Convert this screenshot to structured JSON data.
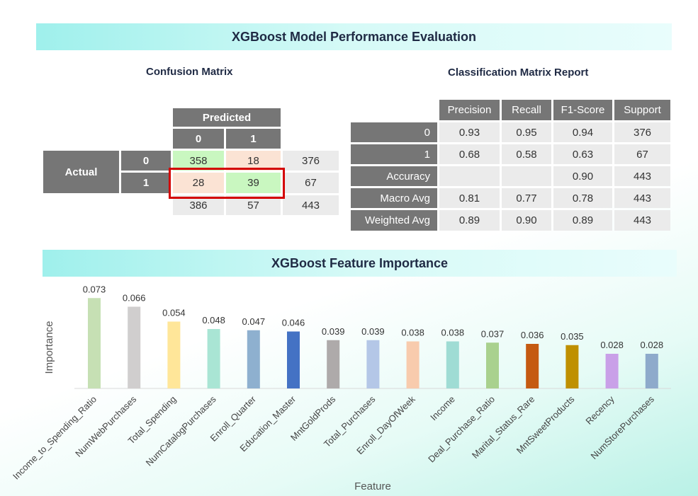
{
  "header": {
    "title": "XGBoost Model Performance Evaluation"
  },
  "confusion_matrix": {
    "title": "Confusion Matrix",
    "predicted_label": "Predicted",
    "actual_label": "Actual",
    "class_labels": [
      "0",
      "1"
    ],
    "rows": [
      {
        "actual": "0",
        "values": [
          "358",
          "18"
        ],
        "total": "376"
      },
      {
        "actual": "1",
        "values": [
          "28",
          "39"
        ],
        "total": "67"
      }
    ],
    "column_totals": [
      "386",
      "57",
      "443"
    ]
  },
  "classification_report": {
    "title": "Classification Matrix Report",
    "columns": [
      "Precision",
      "Recall",
      "F1-Score",
      "Support"
    ],
    "rows": [
      {
        "label": "0",
        "values": [
          "0.93",
          "0.95",
          "0.94",
          "376"
        ]
      },
      {
        "label": "1",
        "values": [
          "0.68",
          "0.58",
          "0.63",
          "67"
        ]
      },
      {
        "label": "Accuracy",
        "values": [
          "",
          "",
          "0.90",
          "443"
        ]
      },
      {
        "label": "Macro Avg",
        "values": [
          "0.81",
          "0.77",
          "0.78",
          "443"
        ]
      },
      {
        "label": "Weighted Avg",
        "values": [
          "0.89",
          "0.90",
          "0.89",
          "443"
        ]
      }
    ]
  },
  "feature_section": {
    "title": "XGBoost Feature Importance"
  },
  "chart_data": {
    "type": "bar",
    "title": "XGBoost Feature Importance",
    "xlabel": "Feature",
    "ylabel": "Importance",
    "ylim": [
      0,
      0.08
    ],
    "grid": false,
    "categories": [
      "Income_to_Spending_Ratio",
      "NumWebPurchases",
      "Total_Spending",
      "NumCatalogPurchases",
      "Enroll_Quarter",
      "Education_Master",
      "MntGoldProds",
      "Total_Purchases",
      "Enroll_DayOfWeek",
      "Income",
      "Deal_Purchase_Ratio",
      "Marital_Status_Rare",
      "MntSweetProducts",
      "Recency",
      "NumStorePurchases"
    ],
    "values": [
      0.073,
      0.066,
      0.054,
      0.048,
      0.047,
      0.046,
      0.039,
      0.039,
      0.038,
      0.038,
      0.037,
      0.036,
      0.035,
      0.028,
      0.028
    ],
    "value_labels": [
      "0.073",
      "0.066",
      "0.054",
      "0.048",
      "0.047",
      "0.046",
      "0.039",
      "0.039",
      "0.038",
      "0.038",
      "0.037",
      "0.036",
      "0.035",
      "0.028",
      "0.028"
    ],
    "colors": [
      "#c6e0b4",
      "#d0cece",
      "#ffe699",
      "#a9e5d4",
      "#8eb0cf",
      "#4472c4",
      "#aeaaaa",
      "#b4c7e7",
      "#f8cbad",
      "#9fdcd4",
      "#a9d18e",
      "#c55a11",
      "#bf9000",
      "#c9a0e8",
      "#8eaacb"
    ]
  }
}
